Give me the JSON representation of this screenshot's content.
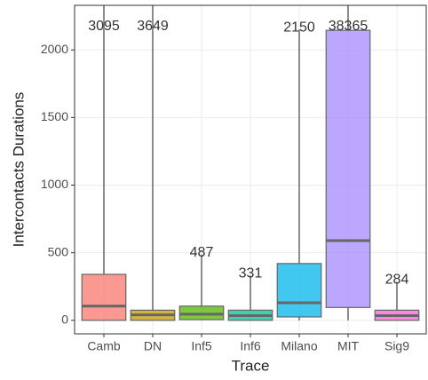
{
  "chart_data": {
    "type": "box",
    "x_label": "Trace",
    "y_label": "Intercontacts Durations",
    "ylim": [
      -100,
      2330
    ],
    "yticks": [
      0,
      500,
      1000,
      1500,
      2000
    ],
    "grid": true,
    "series": [
      {
        "name": "Camb",
        "color": "#F8766D",
        "low": 0,
        "q1": 0,
        "median": 105,
        "q3": 340,
        "high": 3095
      },
      {
        "name": "DN",
        "color": "#C49A00",
        "low": 0,
        "q1": 0,
        "median": 40,
        "q3": 75,
        "high": 3649
      },
      {
        "name": "Inf5",
        "color": "#53B400",
        "low": 0,
        "q1": 5,
        "median": 45,
        "q3": 105,
        "high": 487
      },
      {
        "name": "Inf6",
        "color": "#00C094",
        "low": 0,
        "q1": 0,
        "median": 35,
        "q3": 75,
        "high": 331
      },
      {
        "name": "Milano",
        "color": "#00B6EB",
        "low": 0,
        "q1": 25,
        "median": 130,
        "q3": 420,
        "high": 2150
      },
      {
        "name": "MIT",
        "color": "#A58AFF",
        "low": 0,
        "q1": 95,
        "median": 590,
        "q3": 2145,
        "high": 38365
      },
      {
        "name": "Sig9",
        "color": "#FB61D7",
        "low": 0,
        "q1": 0,
        "median": 35,
        "q3": 75,
        "high": 284
      }
    ]
  }
}
